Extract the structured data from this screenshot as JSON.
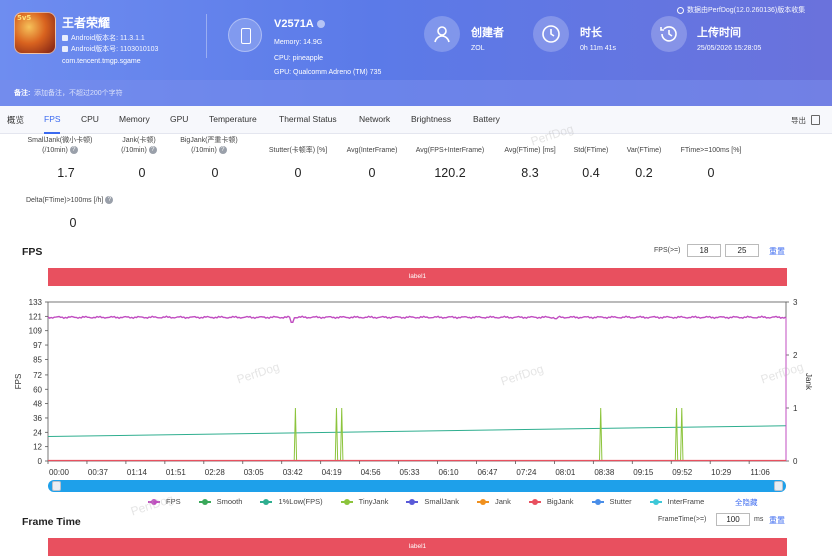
{
  "app": {
    "name": "王者荣耀",
    "android_version": "Android版本名: 11.3.1.1",
    "android_code": "Android版本号: 1103010103",
    "package": "com.tencent.tmgp.sgame",
    "icon_badge": "5v5"
  },
  "device": {
    "name": "V2571A",
    "memory": "Memory: 14.9G",
    "cpu": "CPU: pineapple",
    "gpu": "GPU: Qualcomm Adreno (TM) 735"
  },
  "stats": {
    "creator_title": "创建者",
    "creator_value": "ZOL",
    "duration_title": "时长",
    "duration_value": "0h 11m 41s",
    "upload_title": "上传时间",
    "upload_value": "25/05/2026 15:28:05"
  },
  "top_note": "数据由PerfDog(12.0.260136)版本收集",
  "remark": {
    "label": "备注:",
    "placeholder": "添加备注，不超过200个字符"
  },
  "tabs": [
    "概览",
    "FPS",
    "CPU",
    "Memory",
    "GPU",
    "Temperature",
    "Thermal Status",
    "Network",
    "Brightness",
    "Battery"
  ],
  "export_label": "导出",
  "metrics": [
    {
      "label1": "SmallJank(微小卡顿)",
      "label2": "(/10min)",
      "value": "1.7"
    },
    {
      "label1": "Jank(卡顿)",
      "label2": "(/10min)",
      "value": "0"
    },
    {
      "label1": "BigJank(严重卡顿)",
      "label2": "(/10min)",
      "value": "0"
    },
    {
      "label1": "Stutter(卡顿率) [%]",
      "label2": "",
      "value": "0"
    },
    {
      "label1": "Avg(InterFrame)",
      "label2": "",
      "value": "0"
    },
    {
      "label1": "Avg(FPS+InterFrame)",
      "label2": "",
      "value": "120.2"
    },
    {
      "label1": "Avg(FTime) [ms]",
      "label2": "",
      "value": "8.3"
    },
    {
      "label1": "Std(FTime)",
      "label2": "",
      "value": "0.4"
    },
    {
      "label1": "Var(FTime)",
      "label2": "",
      "value": "0.2"
    },
    {
      "label1": "FTime>=100ms [%]",
      "label2": "",
      "value": "0"
    }
  ],
  "delta_metric": {
    "label": "Delta(FTime)>100ms [/h]",
    "value": "0"
  },
  "fps_section": {
    "title": "FPS",
    "threshold_label": "FPS(>=)",
    "threshold_1": "18",
    "threshold_2": "25",
    "reset": "重置",
    "label_bar": "label1"
  },
  "frametime_section": {
    "title": "Frame Time",
    "threshold_label": "FrameTime(>=)",
    "threshold": "100",
    "unit": "ms",
    "reset": "重置",
    "label_bar": "label1"
  },
  "watermark": "PerfDog",
  "legend_hide_all": "全隐藏",
  "colors": {
    "fps": "#c04cc0",
    "smooth": "#3aa85a",
    "low1": "#2fae8f",
    "tinyjank": "#8cc43c",
    "smalljank": "#5a5ad8",
    "jank": "#f0901e",
    "bigjank": "#e8505f",
    "stutter": "#4a8ee8",
    "interframe": "#3ec8d8",
    "header_accent": "#5b7ae8",
    "label_bar": "#e8505f",
    "slider": "#1ea0ea"
  },
  "chart_data": {
    "type": "line",
    "x_ticks": [
      "00:00",
      "00:37",
      "01:14",
      "01:51",
      "02:28",
      "03:05",
      "03:42",
      "04:19",
      "04:56",
      "05:33",
      "06:10",
      "06:47",
      "07:24",
      "08:01",
      "08:38",
      "09:15",
      "09:52",
      "10:29",
      "11:06"
    ],
    "x_range_seconds": [
      0,
      701
    ],
    "y_left": {
      "label": "FPS",
      "ticks": [
        0,
        12,
        24,
        36,
        48,
        60,
        72,
        85,
        97,
        109,
        121,
        133
      ],
      "range": [
        0,
        133
      ]
    },
    "y_right": {
      "label": "Jank",
      "ticks": [
        0,
        1,
        2,
        3
      ],
      "range": [
        0,
        3
      ]
    },
    "series": [
      {
        "name": "FPS",
        "axis": "left",
        "baseline": 120.2,
        "dips": [
          [
            232,
            116
          ],
          [
            482,
            119
          ]
        ]
      },
      {
        "name": "1%Low(FPS)",
        "axis": "left",
        "start": 20.5,
        "end": 29.5
      },
      {
        "name": "TinyJank",
        "axis": "right",
        "spikes_seconds": [
          235,
          274,
          279,
          525,
          597,
          602
        ]
      }
    ],
    "legend": [
      "FPS",
      "Smooth",
      "1%Low(FPS)",
      "TinyJank",
      "SmallJank",
      "Jank",
      "BigJank",
      "Stutter",
      "InterFrame"
    ],
    "legend_position": "bottom"
  }
}
